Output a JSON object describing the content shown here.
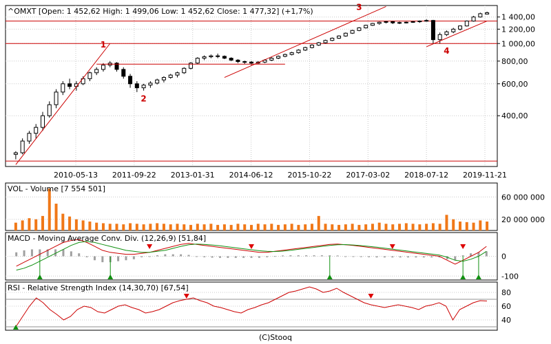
{
  "chart_data": [
    {
      "type": "candlestick",
      "title": "^OMXT [Open: 1 452,62  High: 1 499,06  Low: 1 452,62  Close: 1 477,32] (+1,7%)",
      "x_tick_labels": [
        "2010-05-13",
        "2011-09-22",
        "2013-01-31",
        "2014-06-12",
        "2015-10-22",
        "2017-03-02",
        "2018-07-12",
        "2019-11-21"
      ],
      "y_tick_labels": [
        "1 400,00",
        "1 200,00",
        "1 000,00",
        "800,00",
        "600,00",
        "400,00"
      ],
      "y_ticks": [
        1400,
        1200,
        1000,
        800,
        600,
        400
      ],
      "y_scale": "log",
      "ylim": [
        210,
        1620
      ],
      "horizontal_levels": [
        1330,
        1000,
        225
      ],
      "annotations": [
        "1",
        "2",
        "3",
        "4"
      ],
      "series": [
        {
          "values": [
            [
              245,
              255,
              230,
              250
            ],
            [
              250,
              300,
              245,
              290
            ],
            [
              290,
              330,
              280,
              320
            ],
            [
              320,
              360,
              300,
              345
            ],
            [
              345,
              420,
              330,
              400
            ],
            [
              400,
              480,
              390,
              460
            ],
            [
              460,
              560,
              440,
              540
            ],
            [
              540,
              620,
              520,
              600
            ],
            [
              600,
              640,
              560,
              580
            ],
            [
              580,
              620,
              550,
              600
            ],
            [
              600,
              660,
              590,
              640
            ],
            [
              640,
              700,
              620,
              690
            ],
            [
              690,
              740,
              670,
              720
            ],
            [
              720,
              780,
              700,
              760
            ],
            [
              760,
              800,
              740,
              780
            ],
            [
              780,
              790,
              700,
              720
            ],
            [
              720,
              740,
              640,
              660
            ],
            [
              660,
              680,
              570,
              600
            ],
            [
              600,
              620,
              540,
              570
            ],
            [
              570,
              600,
              550,
              590
            ],
            [
              590,
              620,
              570,
              605
            ],
            [
              605,
              640,
              595,
              630
            ],
            [
              630,
              660,
              610,
              650
            ],
            [
              650,
              680,
              640,
              670
            ],
            [
              670,
              700,
              650,
              690
            ],
            [
              690,
              740,
              680,
              730
            ],
            [
              730,
              790,
              720,
              780
            ],
            [
              780,
              840,
              770,
              830
            ],
            [
              830,
              860,
              810,
              845
            ],
            [
              845,
              870,
              830,
              855
            ],
            [
              855,
              880,
              830,
              850
            ],
            [
              850,
              860,
              820,
              830
            ],
            [
              830,
              840,
              800,
              810
            ],
            [
              810,
              820,
              780,
              795
            ],
            [
              795,
              805,
              770,
              790
            ],
            [
              790,
              800,
              760,
              780
            ],
            [
              780,
              800,
              770,
              790
            ],
            [
              790,
              820,
              780,
              810
            ],
            [
              810,
              840,
              800,
              830
            ],
            [
              830,
              860,
              820,
              850
            ],
            [
              850,
              880,
              840,
              870
            ],
            [
              870,
              900,
              860,
              890
            ],
            [
              890,
              930,
              880,
              920
            ],
            [
              920,
              960,
              910,
              950
            ],
            [
              950,
              990,
              940,
              980
            ],
            [
              980,
              1020,
              970,
              1010
            ],
            [
              1010,
              1050,
              1000,
              1040
            ],
            [
              1040,
              1080,
              1030,
              1070
            ],
            [
              1070,
              1110,
              1060,
              1100
            ],
            [
              1100,
              1150,
              1090,
              1140
            ],
            [
              1140,
              1190,
              1130,
              1180
            ],
            [
              1180,
              1230,
              1170,
              1220
            ],
            [
              1220,
              1270,
              1210,
              1260
            ],
            [
              1260,
              1300,
              1250,
              1290
            ],
            [
              1290,
              1320,
              1270,
              1310
            ],
            [
              1310,
              1330,
              1290,
              1320
            ],
            [
              1320,
              1330,
              1280,
              1300
            ],
            [
              1300,
              1320,
              1280,
              1305
            ],
            [
              1305,
              1320,
              1290,
              1310
            ],
            [
              1310,
              1330,
              1300,
              1320
            ],
            [
              1320,
              1340,
              1300,
              1330
            ],
            [
              1330,
              1360,
              1320,
              1340
            ],
            [
              1340,
              1350,
              1000,
              1050
            ],
            [
              1050,
              1150,
              1000,
              1120
            ],
            [
              1120,
              1180,
              1100,
              1160
            ],
            [
              1160,
              1220,
              1140,
              1200
            ],
            [
              1200,
              1260,
              1180,
              1250
            ],
            [
              1250,
              1340,
              1240,
              1330
            ],
            [
              1330,
              1420,
              1320,
              1400
            ],
            [
              1400,
              1480,
              1390,
              1460
            ],
            [
              1452.62,
              1499.06,
              1452.62,
              1477.32
            ]
          ]
        }
      ]
    },
    {
      "type": "bar",
      "title": "VOL - Volume [7 554 501]",
      "y_tick_labels": [
        "60 000 000",
        "20 000 000"
      ],
      "y_ticks": [
        60000000,
        20000000
      ],
      "ylim": [
        0,
        85000000
      ],
      "series": [
        {
          "values": [
            14000000,
            18000000,
            22000000,
            20000000,
            26000000,
            75000000,
            48000000,
            30000000,
            25000000,
            20000000,
            18000000,
            16000000,
            14000000,
            13000000,
            12000000,
            12000000,
            11000000,
            13000000,
            12000000,
            11000000,
            12000000,
            13000000,
            12000000,
            11000000,
            12000000,
            11000000,
            10000000,
            12000000,
            11000000,
            12000000,
            10000000,
            11000000,
            10000000,
            12000000,
            11000000,
            10000000,
            12000000,
            11000000,
            12000000,
            10000000,
            11000000,
            12000000,
            10000000,
            11000000,
            12000000,
            26000000,
            12000000,
            11000000,
            10000000,
            11000000,
            12000000,
            10000000,
            11000000,
            12000000,
            14000000,
            12000000,
            11000000,
            12000000,
            13000000,
            12000000,
            11000000,
            12000000,
            13000000,
            12000000,
            28000000,
            20000000,
            16000000,
            15000000,
            14000000,
            18000000,
            16000000
          ]
        }
      ]
    },
    {
      "type": "line",
      "title": "MACD - Moving Average Conv. Div. (12,26,9) [51,84]",
      "y_tick_labels": [
        "0",
        "-100"
      ],
      "y_ticks": [
        0,
        -100
      ],
      "ylim": [
        -120,
        120
      ],
      "series": [
        {
          "values": [
            -50,
            -30,
            -10,
            10,
            30,
            50,
            70,
            80,
            85,
            70,
            50,
            30,
            20,
            15,
            10,
            10,
            15,
            20,
            30,
            40,
            50,
            60,
            65,
            60,
            55,
            50,
            45,
            40,
            35,
            30,
            25,
            20,
            20,
            25,
            30,
            35,
            40,
            45,
            50,
            55,
            60,
            62,
            58,
            55,
            50,
            45,
            40,
            35,
            30,
            25,
            20,
            15,
            10,
            5,
            0,
            -20,
            -40,
            -20,
            0,
            20,
            50
          ]
        },
        {
          "values": [
            -70,
            -60,
            -45,
            -25,
            -5,
            15,
            35,
            55,
            70,
            75,
            70,
            60,
            50,
            40,
            30,
            25,
            20,
            20,
            25,
            30,
            40,
            50,
            58,
            62,
            60,
            57,
            53,
            48,
            43,
            38,
            33,
            28,
            25,
            24,
            26,
            30,
            35,
            40,
            45,
            50,
            55,
            58,
            59,
            57,
            54,
            50,
            46,
            41,
            36,
            31,
            26,
            21,
            16,
            11,
            6,
            -5,
            -20,
            -25,
            -15,
            0,
            25
          ]
        },
        {
          "values": [
            20,
            30,
            35,
            35,
            35,
            35,
            35,
            25,
            15,
            -5,
            -20,
            -30,
            -30,
            -25,
            -20,
            -15,
            -5,
            0,
            5,
            10,
            10,
            10,
            7,
            -2,
            -5,
            -7,
            -8,
            -8,
            -8,
            -8,
            -8,
            -8,
            -5,
            1,
            4,
            5,
            5,
            5,
            5,
            5,
            5,
            4,
            -1,
            -2,
            -4,
            -5,
            -6,
            -6,
            -6,
            -6,
            -6,
            -6,
            -6,
            -6,
            -6,
            -15,
            -20,
            5,
            15,
            20,
            25
          ]
        }
      ]
    },
    {
      "type": "line",
      "title": "RSI - Relative Strength Index (14,30,70) [67,54]",
      "y_tick_labels": [
        "80",
        "60",
        "40"
      ],
      "y_ticks": [
        80,
        60,
        40
      ],
      "ylim": [
        25,
        95
      ],
      "series": [
        {
          "values": [
            30,
            45,
            60,
            72,
            65,
            55,
            48,
            40,
            45,
            55,
            60,
            58,
            52,
            50,
            55,
            60,
            62,
            58,
            55,
            50,
            52,
            55,
            60,
            65,
            68,
            70,
            72,
            68,
            65,
            60,
            58,
            55,
            52,
            50,
            55,
            58,
            62,
            65,
            70,
            75,
            80,
            82,
            85,
            88,
            85,
            80,
            82,
            86,
            80,
            75,
            70,
            65,
            62,
            60,
            58,
            60,
            62,
            60,
            58,
            55,
            60,
            62,
            65,
            60,
            40,
            55,
            60,
            65,
            68,
            67.54
          ]
        }
      ]
    }
  ],
  "footer": "(C)Stooq"
}
